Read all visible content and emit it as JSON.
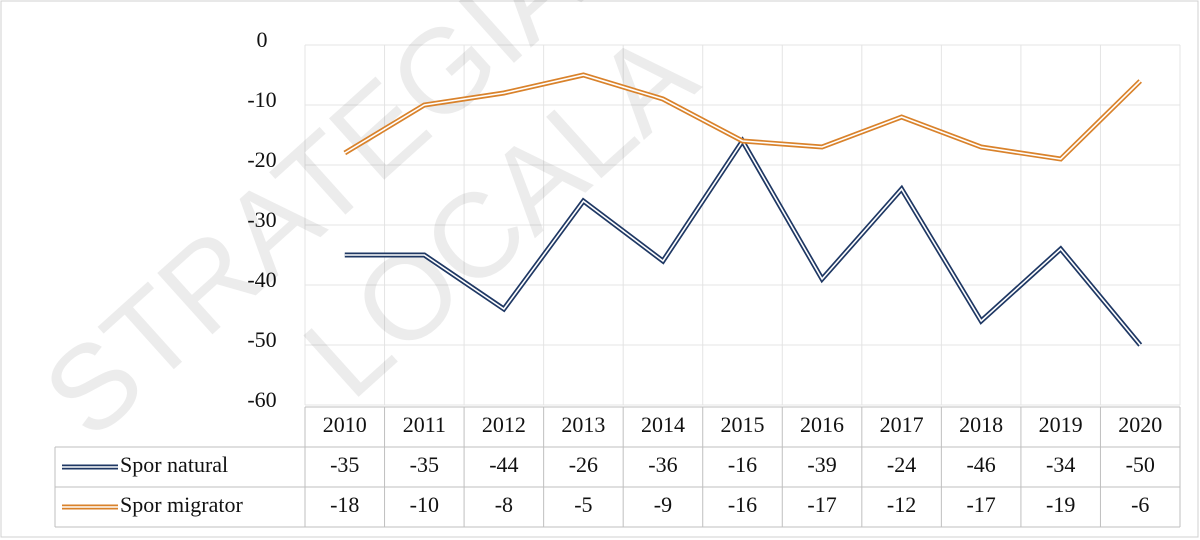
{
  "chart_data": {
    "type": "line",
    "categories": [
      "2010",
      "2011",
      "2012",
      "2013",
      "2014",
      "2015",
      "2016",
      "2017",
      "2018",
      "2019",
      "2020"
    ],
    "series": [
      {
        "name": "Spor natural",
        "color": "#1f3864",
        "values": [
          -35,
          -35,
          -44,
          -26,
          -36,
          -16,
          -39,
          -24,
          -46,
          -34,
          -50
        ]
      },
      {
        "name": "Spor migrator",
        "color": "#d9822b",
        "values": [
          -18,
          -10,
          -8,
          -5,
          -9,
          -16,
          -17,
          -12,
          -17,
          -19,
          -6
        ]
      }
    ],
    "ylim": [
      -60,
      0
    ],
    "yticks": [
      0,
      -10,
      -20,
      -30,
      -40,
      -50,
      -60
    ],
    "grid": true,
    "data_table": true,
    "watermark": [
      "STRATEGIA",
      "LOCALA"
    ]
  }
}
